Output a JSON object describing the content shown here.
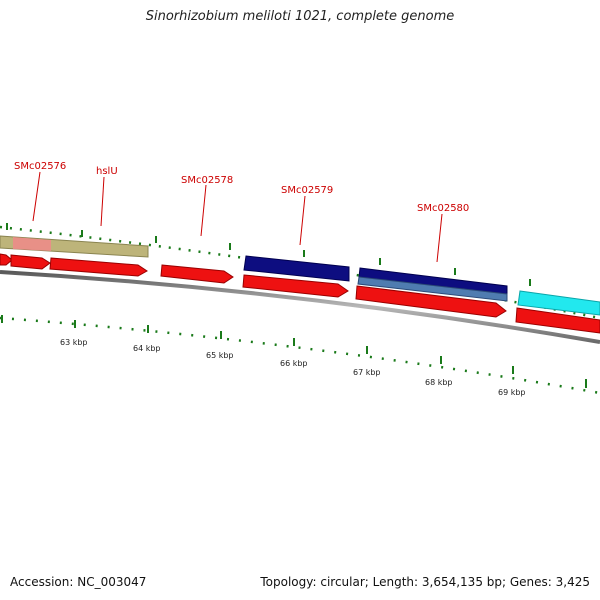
{
  "title": "Sinorhizobium meliloti 1021, complete genome",
  "footer": {
    "accession": "Accession: NC_003047",
    "stats": "Topology: circular; Length: 3,654,135 bp; Genes: 3,425"
  },
  "gene_labels": [
    "SMc02576",
    "hslU",
    "SMc02578",
    "SMc02579",
    "SMc02580"
  ],
  "kbp_labels": [
    "63 kbp",
    "64 kbp",
    "65 kbp",
    "66 kbp",
    "67 kbp",
    "68 kbp",
    "69 kbp"
  ],
  "colors": {
    "forward_cds": "#ee1111",
    "protein_dark": "#0d0d80",
    "protein_light": "#4f7cb0",
    "protein_cyan": "#22e8ee",
    "olive_feature": "#bdb47a",
    "pink_feature": "#f08a8a",
    "tick_green": "#1a7a1a",
    "backbone": "#808080",
    "label_red": "#cc0000"
  }
}
